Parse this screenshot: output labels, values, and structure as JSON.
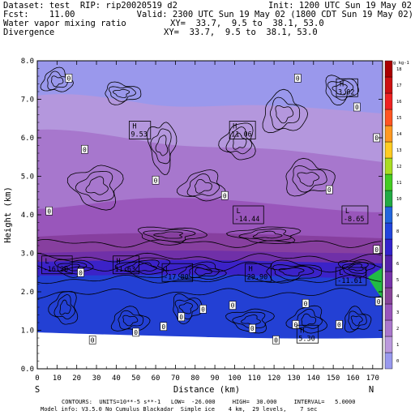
{
  "header": {
    "line1_left": "Dataset: test  RIP: rip20020519 d2",
    "line1_right": "Init: 1200 UTC Sun 19 May 02",
    "line2_left": "Fcst:    11.00",
    "line2_right": "Valid: 2300 UTC Sun 19 May 02 (1800 CDT Sun 19 May 02)",
    "line3_left": "Water vapor mixing ratio",
    "line3_right": "XY=  33.7,  9.5 to  38.1, 53.0",
    "line4_left": "Divergence",
    "line4_right": "XY=  33.7,  9.5 to  38.1, 53.0"
  },
  "footer": {
    "line1": "CONTOURS:  UNITS=10**-5 s**-1   LOW=  -26.000     HIGH=  30.000     INTERVAL=   5.0000",
    "line2": "Model info: V3.5.0 No Cumulus Blackadar  Simple ice    4 km,  29 levels,    7 sec"
  },
  "chart_data": {
    "type": "cross-section",
    "xlabel": "Distance (km)",
    "ylabel": "Height (km)",
    "xlim": [
      0,
      175
    ],
    "ylim": [
      0,
      8
    ],
    "x_ticks": [
      0,
      10,
      20,
      30,
      40,
      50,
      60,
      70,
      80,
      90,
      100,
      110,
      120,
      130,
      140,
      150,
      160,
      170
    ],
    "y_ticks": [
      "0.0",
      "1.0",
      "2.0",
      "3.0",
      "4.0",
      "5.0",
      "6.0",
      "7.0",
      "8.0"
    ],
    "x_end_left": "S",
    "x_end_right": "N",
    "colorbar": {
      "unit": "g kg-1",
      "ticks": [
        "0",
        "1",
        "2",
        "3",
        "4",
        "5",
        "6",
        "7",
        "8",
        "9",
        "10",
        "11",
        "12",
        "13",
        "14",
        "15",
        "16",
        "17",
        "18"
      ],
      "colors": [
        "#9999ee",
        "#bb99dd",
        "#aa77cc",
        "#9955bb",
        "#884499",
        "#7733aa",
        "#5522aa",
        "#3322cc",
        "#2244dd",
        "#2266dd",
        "#22aa44",
        "#44cc22",
        "#aadd22",
        "#ffcc22",
        "#ff9922",
        "#ff5522",
        "#ee2222",
        "#cc1111",
        "#aa0000"
      ]
    },
    "annotations": [
      {
        "type": "H",
        "value": "3.02",
        "x": 157,
        "y": 7.3
      },
      {
        "type": "H",
        "value": "9.53",
        "x": 52,
        "y": 6.2
      },
      {
        "type": "H",
        "value": "11.06",
        "x": 104,
        "y": 6.2
      },
      {
        "type": "L",
        "value": "-14.44",
        "x": 107,
        "y": 4.0
      },
      {
        "type": "L",
        "value": "-8.65",
        "x": 161,
        "y": 4.0
      },
      {
        "type": "L",
        "value": "-16.20",
        "x": 10,
        "y": 2.7
      },
      {
        "type": "H",
        "value": "11.63",
        "x": 45,
        "y": 2.7
      },
      {
        "type": "L",
        "value": "-17.80",
        "x": 71,
        "y": 2.5
      },
      {
        "type": "H",
        "value": "29.90",
        "x": 112,
        "y": 2.5
      },
      {
        "type": "L",
        "value": "-11.61",
        "x": 159,
        "y": 2.4
      },
      {
        "type": "H",
        "value": "5.30",
        "x": 137,
        "y": 0.9
      }
    ],
    "zero_labels": [
      {
        "x": 16,
        "y": 7.55
      },
      {
        "x": 132,
        "y": 7.55
      },
      {
        "x": 162,
        "y": 6.8
      },
      {
        "x": 24,
        "y": 5.7
      },
      {
        "x": 172,
        "y": 6.0
      },
      {
        "x": 6,
        "y": 4.1
      },
      {
        "x": 60,
        "y": 4.9
      },
      {
        "x": 95,
        "y": 4.5
      },
      {
        "x": 148,
        "y": 4.65
      },
      {
        "x": 22,
        "y": 2.5
      },
      {
        "x": 172,
        "y": 3.1
      },
      {
        "x": 173,
        "y": 1.75
      },
      {
        "x": 64,
        "y": 1.1
      },
      {
        "x": 73,
        "y": 1.35
      },
      {
        "x": 50,
        "y": 0.95
      },
      {
        "x": 109,
        "y": 1.05
      },
      {
        "x": 131,
        "y": 1.15
      },
      {
        "x": 153,
        "y": 1.15
      },
      {
        "x": 136,
        "y": 1.7
      },
      {
        "x": 99,
        "y": 1.65
      },
      {
        "x": 28,
        "y": 0.75
      },
      {
        "x": 84,
        "y": 1.55
      },
      {
        "x": 121,
        "y": 0.75
      }
    ]
  }
}
